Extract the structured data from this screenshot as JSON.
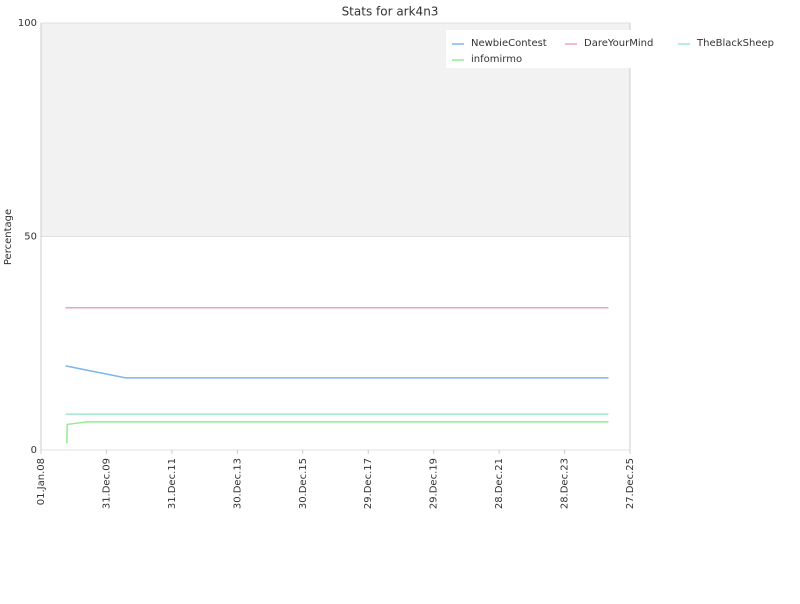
{
  "chart_data": {
    "type": "line",
    "title": "Stats for ark4n3",
    "y_label": "Percentage",
    "xlim": [
      "2008-01-01",
      "2025-12-27"
    ],
    "xticks": [
      {
        "value": "2008-01-01",
        "label": "01.Jan.08"
      },
      {
        "value": "2009-12-31",
        "label": "31.Dec.09"
      },
      {
        "value": "2011-12-31",
        "label": "31.Dec.11"
      },
      {
        "value": "2013-12-30",
        "label": "30.Dec.13"
      },
      {
        "value": "2015-12-30",
        "label": "30.Dec.15"
      },
      {
        "value": "2017-12-29",
        "label": "29.Dec.17"
      },
      {
        "value": "2019-12-29",
        "label": "29.Dec.19"
      },
      {
        "value": "2021-12-28",
        "label": "28.Dec.21"
      },
      {
        "value": "2023-12-28",
        "label": "28.Dec.23"
      },
      {
        "value": "2025-12-27",
        "label": "27.Dec.25"
      }
    ],
    "ylim": [
      0,
      100
    ],
    "yticks": [
      0,
      50,
      100
    ],
    "plot_band": [
      50,
      100
    ],
    "series": [
      {
        "name": "NewbieContest",
        "color": "#7cb5ec",
        "x": [
          "2008-10-01",
          "2010-08-01",
          "2025-05-01"
        ],
        "values": [
          19.7,
          16.9,
          16.9
        ]
      },
      {
        "name": "DareYourMind",
        "color": "#f0a0c0",
        "x": [
          "2008-10-01",
          "2025-05-01"
        ],
        "values": [
          33.3,
          33.3
        ]
      },
      {
        "name": "TheBlackSheep",
        "color": "#a0e8c8",
        "x": [
          "2008-10-01",
          "2025-05-01"
        ],
        "values": [
          8.4,
          8.4
        ]
      },
      {
        "name": "infomirmo",
        "color": "#90ee90",
        "x": [
          "2008-10-15",
          "2008-10-20",
          "2009-06-01",
          "2025-05-01"
        ],
        "values": [
          1.6,
          6.0,
          6.6,
          6.6
        ]
      }
    ]
  }
}
